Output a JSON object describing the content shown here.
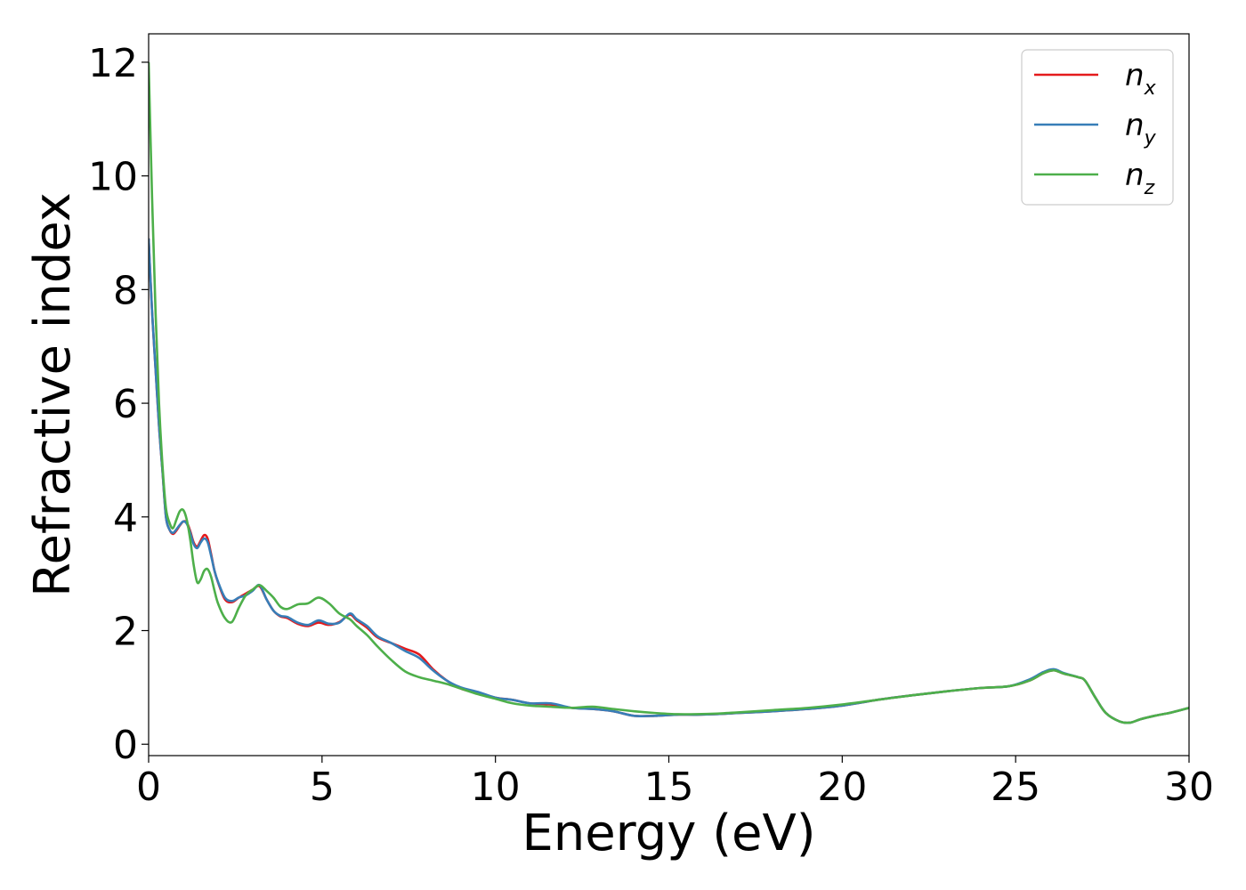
{
  "chart_data": {
    "type": "line",
    "title": "",
    "xlabel": "Energy (eV)",
    "ylabel": "Refractive index",
    "xlim": [
      0,
      30
    ],
    "ylim": [
      -0.2,
      12.5
    ],
    "xticks": [
      0,
      5,
      10,
      15,
      20,
      25,
      30
    ],
    "xtick_labels": [
      "0",
      "5",
      "10",
      "15",
      "20",
      "25",
      "30"
    ],
    "yticks": [
      0,
      2,
      4,
      6,
      8,
      10,
      12
    ],
    "ytick_labels": [
      "0",
      "2",
      "4",
      "6",
      "8",
      "10",
      "12"
    ],
    "grid": false,
    "legend_position": "top-right",
    "series": [
      {
        "name": "n_x",
        "legend_base": "n",
        "legend_sub": "x",
        "color": "#e41a1c",
        "x": [
          0,
          0.1,
          0.2,
          0.3,
          0.4,
          0.5,
          0.6,
          0.7,
          0.8,
          0.9,
          1.0,
          1.1,
          1.2,
          1.3,
          1.4,
          1.5,
          1.6,
          1.7,
          1.8,
          1.9,
          2.0,
          2.2,
          2.4,
          2.6,
          2.8,
          3.0,
          3.2,
          3.4,
          3.6,
          3.8,
          4.0,
          4.3,
          4.6,
          4.9,
          5.2,
          5.5,
          5.8,
          6.0,
          6.3,
          6.6,
          7.0,
          7.4,
          7.8,
          8.2,
          8.6,
          9.0,
          9.5,
          10.0,
          10.5,
          11.0,
          11.6,
          12.2,
          12.8,
          13.4,
          14.0,
          14.6,
          15.2,
          15.8,
          16.4,
          17.0,
          18.0,
          19.0,
          20.0,
          21.0,
          22.0,
          23.0,
          24.0,
          24.8,
          25.4,
          25.8,
          26.1,
          26.4,
          26.8,
          27.0,
          27.3,
          27.6,
          28.0,
          28.3,
          28.6,
          29.0,
          29.5,
          30.0
        ],
        "values": [
          8.9,
          7.6,
          6.6,
          5.6,
          4.8,
          4.0,
          3.78,
          3.7,
          3.76,
          3.85,
          3.92,
          3.9,
          3.75,
          3.55,
          3.48,
          3.58,
          3.68,
          3.62,
          3.35,
          3.05,
          2.85,
          2.55,
          2.5,
          2.58,
          2.65,
          2.72,
          2.78,
          2.55,
          2.35,
          2.25,
          2.22,
          2.12,
          2.08,
          2.14,
          2.1,
          2.15,
          2.28,
          2.18,
          2.05,
          1.88,
          1.78,
          1.68,
          1.58,
          1.32,
          1.12,
          0.98,
          0.9,
          0.82,
          0.78,
          0.72,
          0.7,
          0.64,
          0.62,
          0.58,
          0.5,
          0.5,
          0.52,
          0.52,
          0.53,
          0.55,
          0.58,
          0.62,
          0.68,
          0.78,
          0.86,
          0.93,
          0.99,
          1.02,
          1.12,
          1.25,
          1.3,
          1.24,
          1.18,
          1.12,
          0.82,
          0.55,
          0.4,
          0.38,
          0.44,
          0.5,
          0.56,
          0.64
        ]
      },
      {
        "name": "n_y",
        "legend_base": "n",
        "legend_sub": "y",
        "color": "#377eb8",
        "x": [
          0,
          0.1,
          0.2,
          0.3,
          0.4,
          0.5,
          0.6,
          0.7,
          0.8,
          0.9,
          1.0,
          1.1,
          1.2,
          1.3,
          1.4,
          1.5,
          1.6,
          1.7,
          1.8,
          1.9,
          2.0,
          2.2,
          2.4,
          2.6,
          2.8,
          3.0,
          3.2,
          3.4,
          3.6,
          3.8,
          4.0,
          4.3,
          4.6,
          4.9,
          5.2,
          5.5,
          5.8,
          6.0,
          6.3,
          6.6,
          7.0,
          7.4,
          7.8,
          8.2,
          8.6,
          9.0,
          9.5,
          10.0,
          10.5,
          11.0,
          11.6,
          12.2,
          12.8,
          13.4,
          14.0,
          14.6,
          15.2,
          15.8,
          16.4,
          17.0,
          18.0,
          19.0,
          20.0,
          21.0,
          22.0,
          23.0,
          24.0,
          24.8,
          25.4,
          25.8,
          26.1,
          26.4,
          26.8,
          27.0,
          27.3,
          27.6,
          28.0,
          28.3,
          28.6,
          29.0,
          29.5,
          30.0
        ],
        "values": [
          8.9,
          7.6,
          6.6,
          5.6,
          4.8,
          4.0,
          3.78,
          3.72,
          3.78,
          3.86,
          3.92,
          3.88,
          3.72,
          3.52,
          3.45,
          3.55,
          3.62,
          3.56,
          3.32,
          3.05,
          2.86,
          2.58,
          2.52,
          2.58,
          2.62,
          2.7,
          2.8,
          2.55,
          2.35,
          2.26,
          2.24,
          2.14,
          2.1,
          2.18,
          2.12,
          2.14,
          2.3,
          2.2,
          2.08,
          1.9,
          1.78,
          1.64,
          1.52,
          1.3,
          1.12,
          1.0,
          0.92,
          0.82,
          0.78,
          0.72,
          0.72,
          0.64,
          0.62,
          0.58,
          0.5,
          0.5,
          0.52,
          0.52,
          0.53,
          0.55,
          0.58,
          0.62,
          0.68,
          0.78,
          0.86,
          0.93,
          0.99,
          1.02,
          1.14,
          1.27,
          1.32,
          1.25,
          1.18,
          1.12,
          0.82,
          0.55,
          0.4,
          0.38,
          0.44,
          0.5,
          0.56,
          0.64
        ]
      },
      {
        "name": "n_z",
        "legend_base": "n",
        "legend_sub": "z",
        "color": "#4daf4a",
        "x": [
          0,
          0.1,
          0.2,
          0.3,
          0.4,
          0.5,
          0.6,
          0.7,
          0.8,
          0.9,
          1.0,
          1.1,
          1.2,
          1.3,
          1.4,
          1.5,
          1.6,
          1.7,
          1.8,
          1.9,
          2.0,
          2.2,
          2.4,
          2.6,
          2.8,
          3.0,
          3.2,
          3.4,
          3.6,
          3.8,
          4.0,
          4.3,
          4.6,
          4.9,
          5.2,
          5.5,
          5.8,
          6.0,
          6.3,
          6.6,
          7.0,
          7.4,
          7.8,
          8.2,
          8.6,
          9.0,
          9.5,
          10.0,
          10.5,
          11.0,
          11.6,
          12.2,
          12.8,
          13.4,
          14.0,
          14.6,
          15.2,
          15.8,
          16.4,
          17.0,
          18.0,
          19.0,
          20.0,
          21.0,
          22.0,
          23.0,
          24.0,
          24.8,
          25.4,
          25.8,
          26.1,
          26.4,
          26.8,
          27.0,
          27.3,
          27.6,
          28.0,
          28.3,
          28.6,
          29.0,
          29.5,
          30.0
        ],
        "values": [
          12.0,
          9.6,
          7.6,
          6.0,
          4.9,
          4.15,
          3.9,
          3.8,
          3.95,
          4.1,
          4.12,
          3.95,
          3.6,
          3.15,
          2.85,
          2.9,
          3.05,
          3.08,
          2.95,
          2.7,
          2.48,
          2.22,
          2.15,
          2.4,
          2.62,
          2.72,
          2.8,
          2.7,
          2.58,
          2.42,
          2.38,
          2.46,
          2.48,
          2.58,
          2.48,
          2.3,
          2.2,
          2.08,
          1.92,
          1.72,
          1.48,
          1.28,
          1.18,
          1.12,
          1.06,
          0.98,
          0.88,
          0.8,
          0.72,
          0.68,
          0.66,
          0.64,
          0.66,
          0.62,
          0.58,
          0.55,
          0.53,
          0.53,
          0.54,
          0.56,
          0.6,
          0.64,
          0.7,
          0.78,
          0.86,
          0.93,
          0.99,
          1.02,
          1.12,
          1.25,
          1.3,
          1.24,
          1.18,
          1.12,
          0.82,
          0.55,
          0.4,
          0.38,
          0.44,
          0.5,
          0.56,
          0.64
        ]
      }
    ]
  }
}
